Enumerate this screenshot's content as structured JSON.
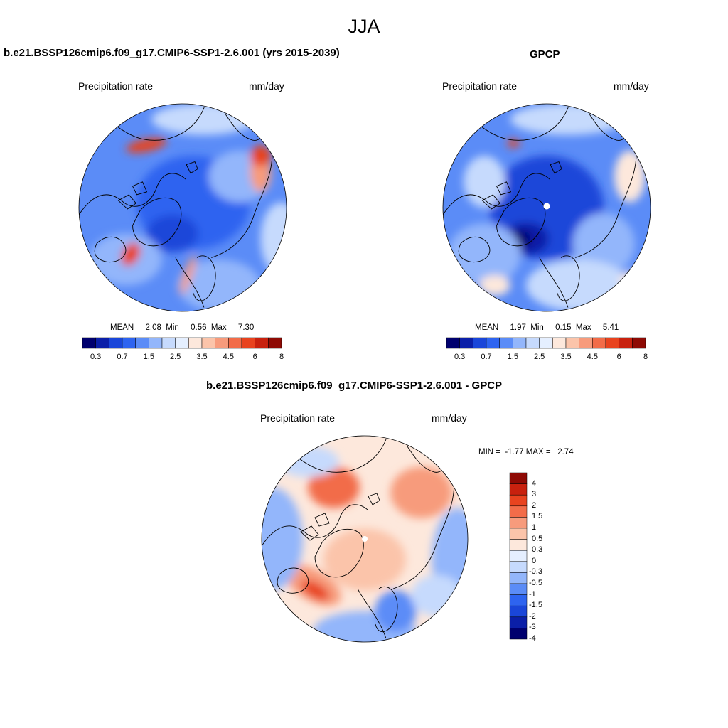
{
  "title": "JJA",
  "panels": [
    {
      "id": "model",
      "title": "b.e21.BSSP126cmip6.f09_g17.CMIP6-SSP1-2.6.001 (yrs 2015-2039)",
      "left_label": "Precipitation rate",
      "right_label": "mm/day",
      "stats": "MEAN=   2.08  Min=   0.56  Max=   7.30"
    },
    {
      "id": "obs",
      "title": "GPCP",
      "left_label": "Precipitation rate",
      "right_label": "mm/day",
      "stats": "MEAN=   1.97  Min=   0.15  Max=   5.41"
    },
    {
      "id": "diff",
      "title": "b.e21.BSSP126cmip6.f09_g17.CMIP6-SSP1-2.6.001 - GPCP",
      "left_label": "Precipitation rate",
      "right_label": "mm/day",
      "stats": "MIN =  -1.77 MAX =   2.74"
    }
  ],
  "precip_colorbar": {
    "colors": [
      "#00006e",
      "#0b1fa8",
      "#1a46d9",
      "#2e64f0",
      "#5b8cf7",
      "#93b6fb",
      "#c6dafd",
      "#e5efff",
      "#fde8dc",
      "#fbc4aa",
      "#f79b7c",
      "#f26c49",
      "#e8431f",
      "#c8210e",
      "#8e0a04"
    ],
    "ticks": [
      "0.3",
      "0.7",
      "1.5",
      "2.5",
      "3.5",
      "4.5",
      "6",
      "8"
    ]
  },
  "diff_colorbar": {
    "colors": [
      "#00006e",
      "#0b1fa8",
      "#1a46d9",
      "#2e64f0",
      "#5b8cf7",
      "#93b6fb",
      "#c6dafd",
      "#e5efff",
      "#fde8dc",
      "#fbc4aa",
      "#f79b7c",
      "#f26c49",
      "#e8431f",
      "#c8210e",
      "#8e0a04"
    ],
    "ticks": [
      "-4",
      "-3",
      "-2",
      "-1.5",
      "-1",
      "-0.5",
      "-0.3",
      "0",
      "0.3",
      "0.5",
      "1",
      "1.5",
      "2",
      "3",
      "4"
    ]
  }
}
